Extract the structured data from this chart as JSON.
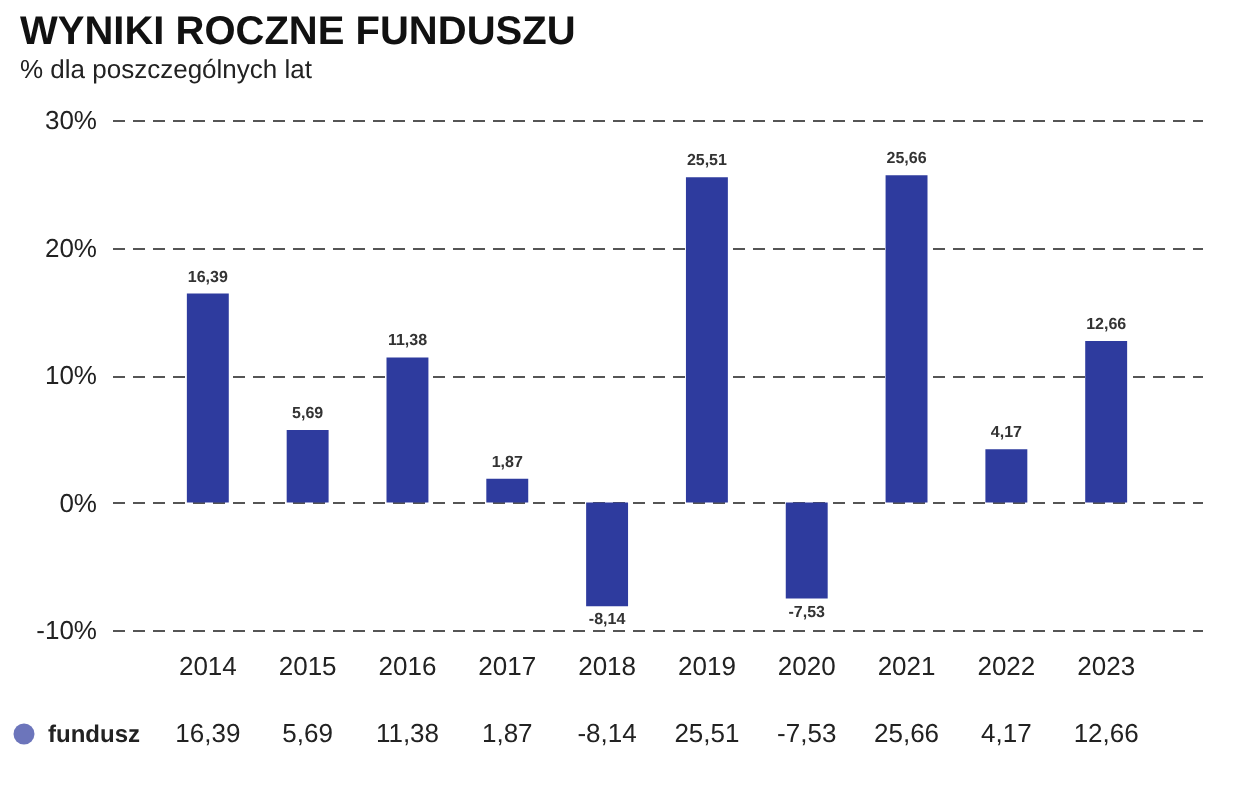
{
  "chart_data": {
    "type": "bar",
    "title": "WYNIKI ROCZNE FUNDUSZU",
    "subtitle": "% dla poszczególnych lat",
    "categories": [
      "2014",
      "2015",
      "2016",
      "2017",
      "2018",
      "2019",
      "2020",
      "2021",
      "2022",
      "2023"
    ],
    "series": [
      {
        "name": "fundusz",
        "color": "#2e3b9e",
        "values": [
          16.39,
          5.69,
          11.38,
          1.87,
          -8.14,
          25.51,
          -7.53,
          25.66,
          4.17,
          12.66
        ],
        "value_labels": [
          "16,39",
          "5,69",
          "11,38",
          "1,87",
          "-8,14",
          "25,51",
          "-7,53",
          "25,66",
          "4,17",
          "12,66"
        ]
      }
    ],
    "ylim": [
      -10,
      30
    ],
    "yticks": [
      {
        "value": -10,
        "label": "-10%"
      },
      {
        "value": 0,
        "label": "0%"
      },
      {
        "value": 10,
        "label": "10%"
      },
      {
        "value": 20,
        "label": "20%"
      },
      {
        "value": 30,
        "label": "30%"
      }
    ],
    "grid": "y",
    "line_style": "dashed",
    "legend": "bottom",
    "marker": "circle"
  }
}
